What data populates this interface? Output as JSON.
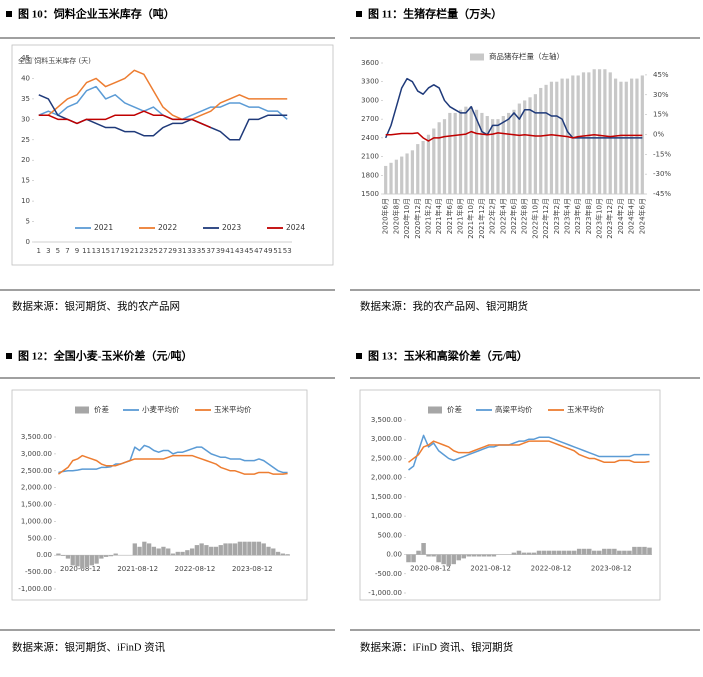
{
  "chart_data": [
    {
      "type": "line",
      "title": "图 10：饲料企业玉米库存（吨）",
      "subtitle": "全国 饲料玉米库存 (天)",
      "source": "数据来源：银河期货、我的农产品网",
      "categories": [
        "1",
        "3",
        "5",
        "7",
        "9",
        "11",
        "13",
        "15",
        "17",
        "19",
        "21",
        "23",
        "25",
        "27",
        "29",
        "31",
        "33",
        "35",
        "37",
        "39",
        "41",
        "43",
        "45",
        "47",
        "49",
        "51",
        "53"
      ],
      "ylim": [
        0,
        45
      ],
      "yticks": [
        0,
        5,
        10,
        15,
        20,
        25,
        30,
        35,
        40,
        45
      ],
      "series": [
        {
          "name": "2021",
          "color": "#5b9bd5",
          "mark": "line",
          "values": [
            31,
            32,
            31,
            33,
            34,
            37,
            38,
            35,
            36,
            34,
            33,
            32,
            33,
            31,
            30,
            30,
            31,
            32,
            33,
            33,
            34,
            34,
            33,
            33,
            32,
            32,
            30
          ]
        },
        {
          "name": "2022",
          "color": "#ed7d31",
          "mark": "line",
          "values": [
            31,
            31,
            33,
            35,
            36,
            39,
            40,
            38,
            39,
            40,
            42,
            41,
            37,
            33,
            31,
            30,
            30,
            31,
            32,
            34,
            35,
            36,
            35,
            35,
            35,
            35,
            35
          ]
        },
        {
          "name": "2023",
          "color": "#1f3a7a",
          "mark": "line",
          "values": [
            36,
            35,
            31,
            30,
            29,
            30,
            29,
            28,
            28,
            27,
            27,
            26,
            26,
            28,
            29,
            29,
            30,
            29,
            28,
            27,
            25,
            25,
            30,
            30,
            31,
            31,
            31
          ]
        },
        {
          "name": "2024",
          "color": "#c00000",
          "mark": "line",
          "values": [
            31,
            31,
            30,
            30,
            29,
            30,
            30,
            30,
            31,
            31,
            31,
            32,
            31,
            31,
            30,
            30,
            30,
            29,
            28,
            null,
            null,
            null,
            null,
            null,
            null,
            null,
            null
          ]
        }
      ]
    },
    {
      "type": "combo",
      "title": "图 11：生猪存栏量（万头）",
      "source": "数据来源：我的农产品网、银河期货",
      "categories": [
        "2020年6月",
        null,
        "2020年8月",
        null,
        "2020年10月",
        null,
        "2020年12月",
        null,
        "2021年2月",
        null,
        "2021年4月",
        null,
        "2021年6月",
        null,
        "2021年8月",
        null,
        "2021年10月",
        null,
        "2021年12月",
        null,
        "2022年2月",
        null,
        "2022年4月",
        null,
        "2022年6月",
        null,
        "2022年8月",
        null,
        "2022年10月",
        null,
        "2022年12月",
        null,
        "2023年2月",
        null,
        "2023年4月",
        null,
        "2023年6月",
        null,
        "2023年8月",
        null,
        "2023年10月",
        null,
        "2023年12月",
        null,
        "2024年2月",
        null,
        "2024年4月",
        null,
        "2024年6月"
      ],
      "ylim": [
        1500,
        3600
      ],
      "yticks": [
        1500,
        1800,
        2100,
        2400,
        2700,
        3000,
        3300,
        3600
      ],
      "y2lim": [
        -45,
        54
      ],
      "y2ticks": [
        {
          "value": -45,
          "label": "-45%"
        },
        {
          "value": -30,
          "label": "-30%"
        },
        {
          "value": -15,
          "label": "-15%"
        },
        {
          "value": 0,
          "label": "0%"
        },
        {
          "value": 15,
          "label": "15%"
        },
        {
          "value": 30,
          "label": "30%"
        },
        {
          "value": 45,
          "label": "45%"
        }
      ],
      "series": [
        {
          "name": "商品猪存栏量（左轴）",
          "color": "#c8c8c8",
          "mark": "bar",
          "values": [
            1950,
            2000,
            2050,
            2100,
            2150,
            2200,
            2300,
            2350,
            2450,
            2550,
            2650,
            2700,
            2800,
            2800,
            2850,
            2900,
            2900,
            2850,
            2800,
            2750,
            2700,
            2700,
            2750,
            2800,
            2850,
            2950,
            3000,
            3050,
            3100,
            3200,
            3250,
            3300,
            3300,
            3350,
            3350,
            3400,
            3400,
            3450,
            3450,
            3500,
            3500,
            3500,
            3450,
            3350,
            3300,
            3300,
            3350,
            3350,
            3400
          ]
        },
        {
          "color": "#1f3a7a",
          "mark": "line",
          "values": [
            2400,
            2600,
            2900,
            3200,
            3350,
            3300,
            3150,
            3100,
            3200,
            3250,
            3200,
            3000,
            2900,
            2850,
            2800,
            2800,
            2900,
            2700,
            2500,
            2450,
            2600,
            2600,
            2650,
            2700,
            2800,
            2700,
            2850,
            2850,
            2800,
            2800,
            2800,
            2750,
            2750,
            2700,
            2500,
            2400,
            2400,
            2400,
            2400,
            2400,
            2400,
            2400,
            2400,
            2400,
            2400,
            2400,
            2400,
            2400,
            2400
          ]
        },
        {
          "color": "#c00000",
          "mark": "line",
          "values": [
            2450,
            2450,
            2460,
            2470,
            2470,
            2470,
            2480,
            2400,
            2350,
            2400,
            2400,
            2420,
            2430,
            2440,
            2450,
            2460,
            2500,
            2470,
            2460,
            2450,
            2460,
            2480,
            2470,
            2460,
            2450,
            2440,
            2450,
            2440,
            2430,
            2430,
            2440,
            2450,
            2440,
            2430,
            2420,
            2400,
            2420,
            2430,
            2440,
            2450,
            2440,
            2430,
            2420,
            2430,
            2440,
            2440,
            2440,
            2440,
            2440
          ]
        }
      ]
    },
    {
      "type": "combo",
      "title": "图 12：全国小麦-玉米价差（元/吨）",
      "source": "数据来源：银河期货、iFinD 资讯",
      "categories": [
        "2020-08-12",
        null,
        null,
        null,
        null,
        null,
        null,
        null,
        null,
        null,
        null,
        null,
        "2021-08-12",
        null,
        null,
        null,
        null,
        null,
        null,
        null,
        null,
        null,
        null,
        null,
        "2022-08-12",
        null,
        null,
        null,
        null,
        null,
        null,
        null,
        null,
        null,
        null,
        null,
        "2023-08-12",
        null,
        null,
        null,
        null,
        null,
        null,
        null,
        null,
        null,
        null,
        null,
        null
      ],
      "ylim": [
        -1000,
        3500
      ],
      "yticks": [
        {
          "value": -1000,
          "label": "-1,000.00"
        },
        {
          "value": -500,
          "label": "-500.00"
        },
        {
          "value": 0,
          "label": "0.00"
        },
        {
          "value": 500,
          "label": "500.00"
        },
        {
          "value": 1000,
          "label": "1,000.00"
        },
        {
          "value": 1500,
          "label": "1,500.00"
        },
        {
          "value": 2000,
          "label": "2,000.00"
        },
        {
          "value": 2500,
          "label": "2,500.00"
        },
        {
          "value": 3000,
          "label": "3,000.00"
        },
        {
          "value": 3500,
          "label": "3,500.00"
        }
      ],
      "series": [
        {
          "name": "价差",
          "color": "#a6a6a6",
          "mark": "bar",
          "values": [
            50,
            -20,
            -100,
            -300,
            -330,
            -400,
            -350,
            -300,
            -250,
            -100,
            -50,
            -30,
            50,
            0,
            0,
            0,
            350,
            250,
            400,
            350,
            250,
            200,
            250,
            200,
            50,
            100,
            100,
            150,
            200,
            300,
            350,
            300,
            250,
            250,
            300,
            350,
            350,
            350,
            400,
            400,
            400,
            400,
            400,
            350,
            250,
            200,
            100,
            50,
            30
          ]
        },
        {
          "name": "小麦平均价",
          "color": "#5b9bd5",
          "mark": "line",
          "values": [
            2450,
            2480,
            2500,
            2500,
            2520,
            2550,
            2550,
            2550,
            2550,
            2600,
            2600,
            2620,
            2700,
            2700,
            2750,
            2800,
            3200,
            3100,
            3250,
            3200,
            3100,
            3050,
            3100,
            3100,
            3000,
            3050,
            3050,
            3100,
            3150,
            3200,
            3200,
            3100,
            3000,
            2950,
            2900,
            2900,
            2850,
            2850,
            2850,
            2800,
            2800,
            2800,
            2850,
            2800,
            2700,
            2600,
            2500,
            2450,
            2450
          ]
        },
        {
          "name": "玉米平均价",
          "color": "#ed7d31",
          "mark": "line",
          "values": [
            2400,
            2500,
            2600,
            2800,
            2850,
            2950,
            2900,
            2850,
            2800,
            2700,
            2650,
            2650,
            2650,
            2700,
            2750,
            2800,
            2850,
            2850,
            2850,
            2850,
            2850,
            2850,
            2850,
            2900,
            2950,
            2950,
            2950,
            2950,
            2950,
            2900,
            2850,
            2800,
            2750,
            2700,
            2600,
            2550,
            2500,
            2500,
            2450,
            2400,
            2400,
            2400,
            2450,
            2450,
            2450,
            2400,
            2400,
            2400,
            2420
          ]
        }
      ]
    },
    {
      "type": "combo",
      "title": "图 13：玉米和高粱价差（元/吨）",
      "source": "数据来源：iFinD 资讯、银河期货",
      "categories": [
        "2020-08-12",
        null,
        null,
        null,
        null,
        null,
        null,
        null,
        null,
        null,
        null,
        null,
        "2021-08-12",
        null,
        null,
        null,
        null,
        null,
        null,
        null,
        null,
        null,
        null,
        null,
        "2022-08-12",
        null,
        null,
        null,
        null,
        null,
        null,
        null,
        null,
        null,
        null,
        null,
        "2023-08-12",
        null,
        null,
        null,
        null,
        null,
        null,
        null,
        null,
        null,
        null,
        null,
        null
      ],
      "ylim": [
        -1000,
        3500
      ],
      "yticks": [
        {
          "value": -1000,
          "label": "-1,000.00"
        },
        {
          "value": -500,
          "label": "-500.00"
        },
        {
          "value": 0,
          "label": "0.00"
        },
        {
          "value": 500,
          "label": "500.00"
        },
        {
          "value": 1000,
          "label": "1,000.00"
        },
        {
          "value": 1500,
          "label": "1,500.00"
        },
        {
          "value": 2000,
          "label": "2,000.00"
        },
        {
          "value": 2500,
          "label": "2,500.00"
        },
        {
          "value": 3000,
          "label": "3,000.00"
        },
        {
          "value": 3500,
          "label": "3,500.00"
        }
      ],
      "series": [
        {
          "name": "价差",
          "color": "#a6a6a6",
          "mark": "bar",
          "values": [
            -200,
            -200,
            100,
            300,
            -50,
            -50,
            -200,
            -250,
            -300,
            -250,
            -150,
            -100,
            -50,
            -50,
            -50,
            -50,
            -50,
            -50,
            0,
            0,
            0,
            50,
            100,
            50,
            50,
            50,
            100,
            100,
            100,
            100,
            100,
            100,
            100,
            100,
            150,
            150,
            150,
            100,
            100,
            150,
            150,
            150,
            100,
            100,
            100,
            200,
            200,
            200,
            180
          ]
        },
        {
          "name": "高粱平均价",
          "color": "#5b9bd5",
          "mark": "line",
          "values": [
            2200,
            2300,
            2700,
            3100,
            2800,
            2900,
            2700,
            2600,
            2500,
            2450,
            2500,
            2550,
            2600,
            2650,
            2700,
            2750,
            2800,
            2800,
            2850,
            2850,
            2850,
            2900,
            2950,
            2950,
            3000,
            3000,
            3050,
            3050,
            3050,
            3000,
            2950,
            2900,
            2850,
            2800,
            2750,
            2700,
            2650,
            2600,
            2550,
            2550,
            2550,
            2550,
            2550,
            2550,
            2550,
            2600,
            2600,
            2600,
            2600
          ]
        },
        {
          "name": "玉米平均价",
          "color": "#ed7d31",
          "mark": "line",
          "values": [
            2400,
            2500,
            2600,
            2800,
            2850,
            2950,
            2900,
            2850,
            2800,
            2700,
            2650,
            2650,
            2650,
            2700,
            2750,
            2800,
            2850,
            2850,
            2850,
            2850,
            2850,
            2850,
            2850,
            2900,
            2950,
            2950,
            2950,
            2950,
            2950,
            2900,
            2850,
            2800,
            2750,
            2700,
            2600,
            2550,
            2500,
            2500,
            2450,
            2400,
            2400,
            2400,
            2450,
            2450,
            2450,
            2400,
            2400,
            2400,
            2420
          ]
        }
      ]
    }
  ]
}
